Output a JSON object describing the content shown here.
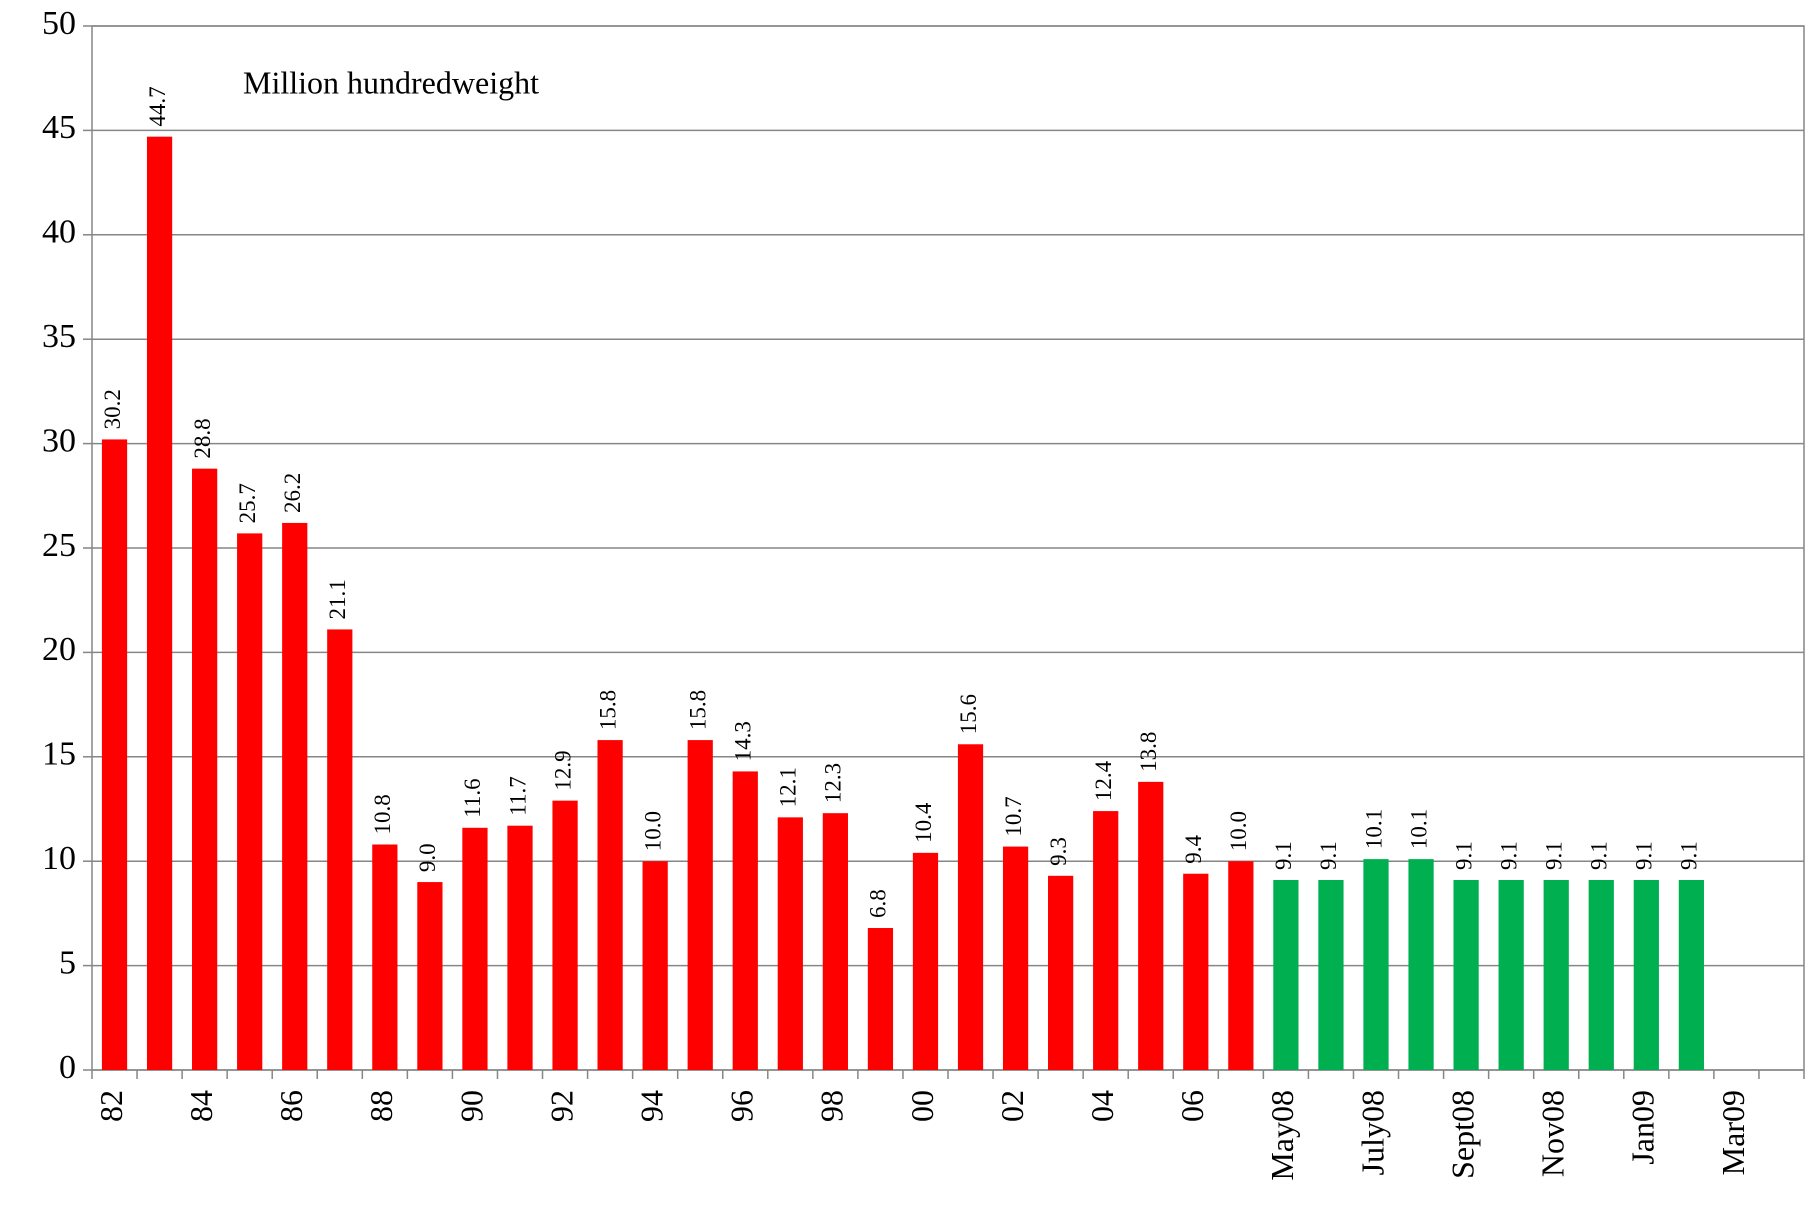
{
  "chart_data": {
    "type": "bar",
    "annotation": "Million hundredweight",
    "categories": [
      "82",
      null,
      "84",
      null,
      "86",
      null,
      "88",
      null,
      "90",
      null,
      "92",
      null,
      "94",
      null,
      "96",
      null,
      "98",
      null,
      "00",
      null,
      "02",
      null,
      "04",
      null,
      "06",
      null,
      "May08",
      null,
      "July08",
      null,
      "Sept08",
      null,
      "Nov08",
      null,
      "Jan09",
      null,
      "Mar09",
      null
    ],
    "values": [
      30.2,
      44.7,
      28.8,
      25.7,
      26.2,
      21.1,
      10.8,
      9.0,
      11.6,
      11.7,
      12.9,
      15.8,
      10.0,
      15.8,
      14.3,
      12.1,
      12.3,
      6.8,
      10.4,
      15.6,
      10.7,
      9.3,
      12.4,
      13.8,
      9.4,
      10.0,
      9.1,
      9.1,
      10.1,
      10.1,
      9.1,
      9.1,
      9.1,
      9.1,
      9.1,
      9.1,
      null,
      null
    ],
    "value_labels": [
      "30.2",
      "44.7",
      "28.8",
      "25.7",
      "26.2",
      "21.1",
      "10.8",
      "9.0",
      "11.6",
      "11.7",
      "12.9",
      "15.8",
      "10.0",
      "15.8",
      "14.3",
      "12.1",
      "12.3",
      "6.8",
      "10.4",
      "15.6",
      "10.7",
      "9.3",
      "12.4",
      "13.8",
      "9.4",
      "10.0",
      "9.1",
      "9.1",
      "10.1",
      "10.1",
      "9.1",
      "9.1",
      "9.1",
      "9.1",
      "9.1",
      "9.1",
      null,
      null
    ],
    "colors": [
      "#ff0000",
      "#ff0000",
      "#ff0000",
      "#ff0000",
      "#ff0000",
      "#ff0000",
      "#ff0000",
      "#ff0000",
      "#ff0000",
      "#ff0000",
      "#ff0000",
      "#ff0000",
      "#ff0000",
      "#ff0000",
      "#ff0000",
      "#ff0000",
      "#ff0000",
      "#ff0000",
      "#ff0000",
      "#ff0000",
      "#ff0000",
      "#ff0000",
      "#ff0000",
      "#ff0000",
      "#ff0000",
      "#ff0000",
      "#00b050",
      "#00b050",
      "#00b050",
      "#00b050",
      "#00b050",
      "#00b050",
      "#00b050",
      "#00b050",
      "#00b050",
      "#00b050",
      null,
      null
    ],
    "ylim": [
      0,
      50
    ],
    "yticks": [
      0,
      5,
      10,
      15,
      20,
      25,
      30,
      35,
      40,
      45,
      50
    ],
    "grid": true
  }
}
